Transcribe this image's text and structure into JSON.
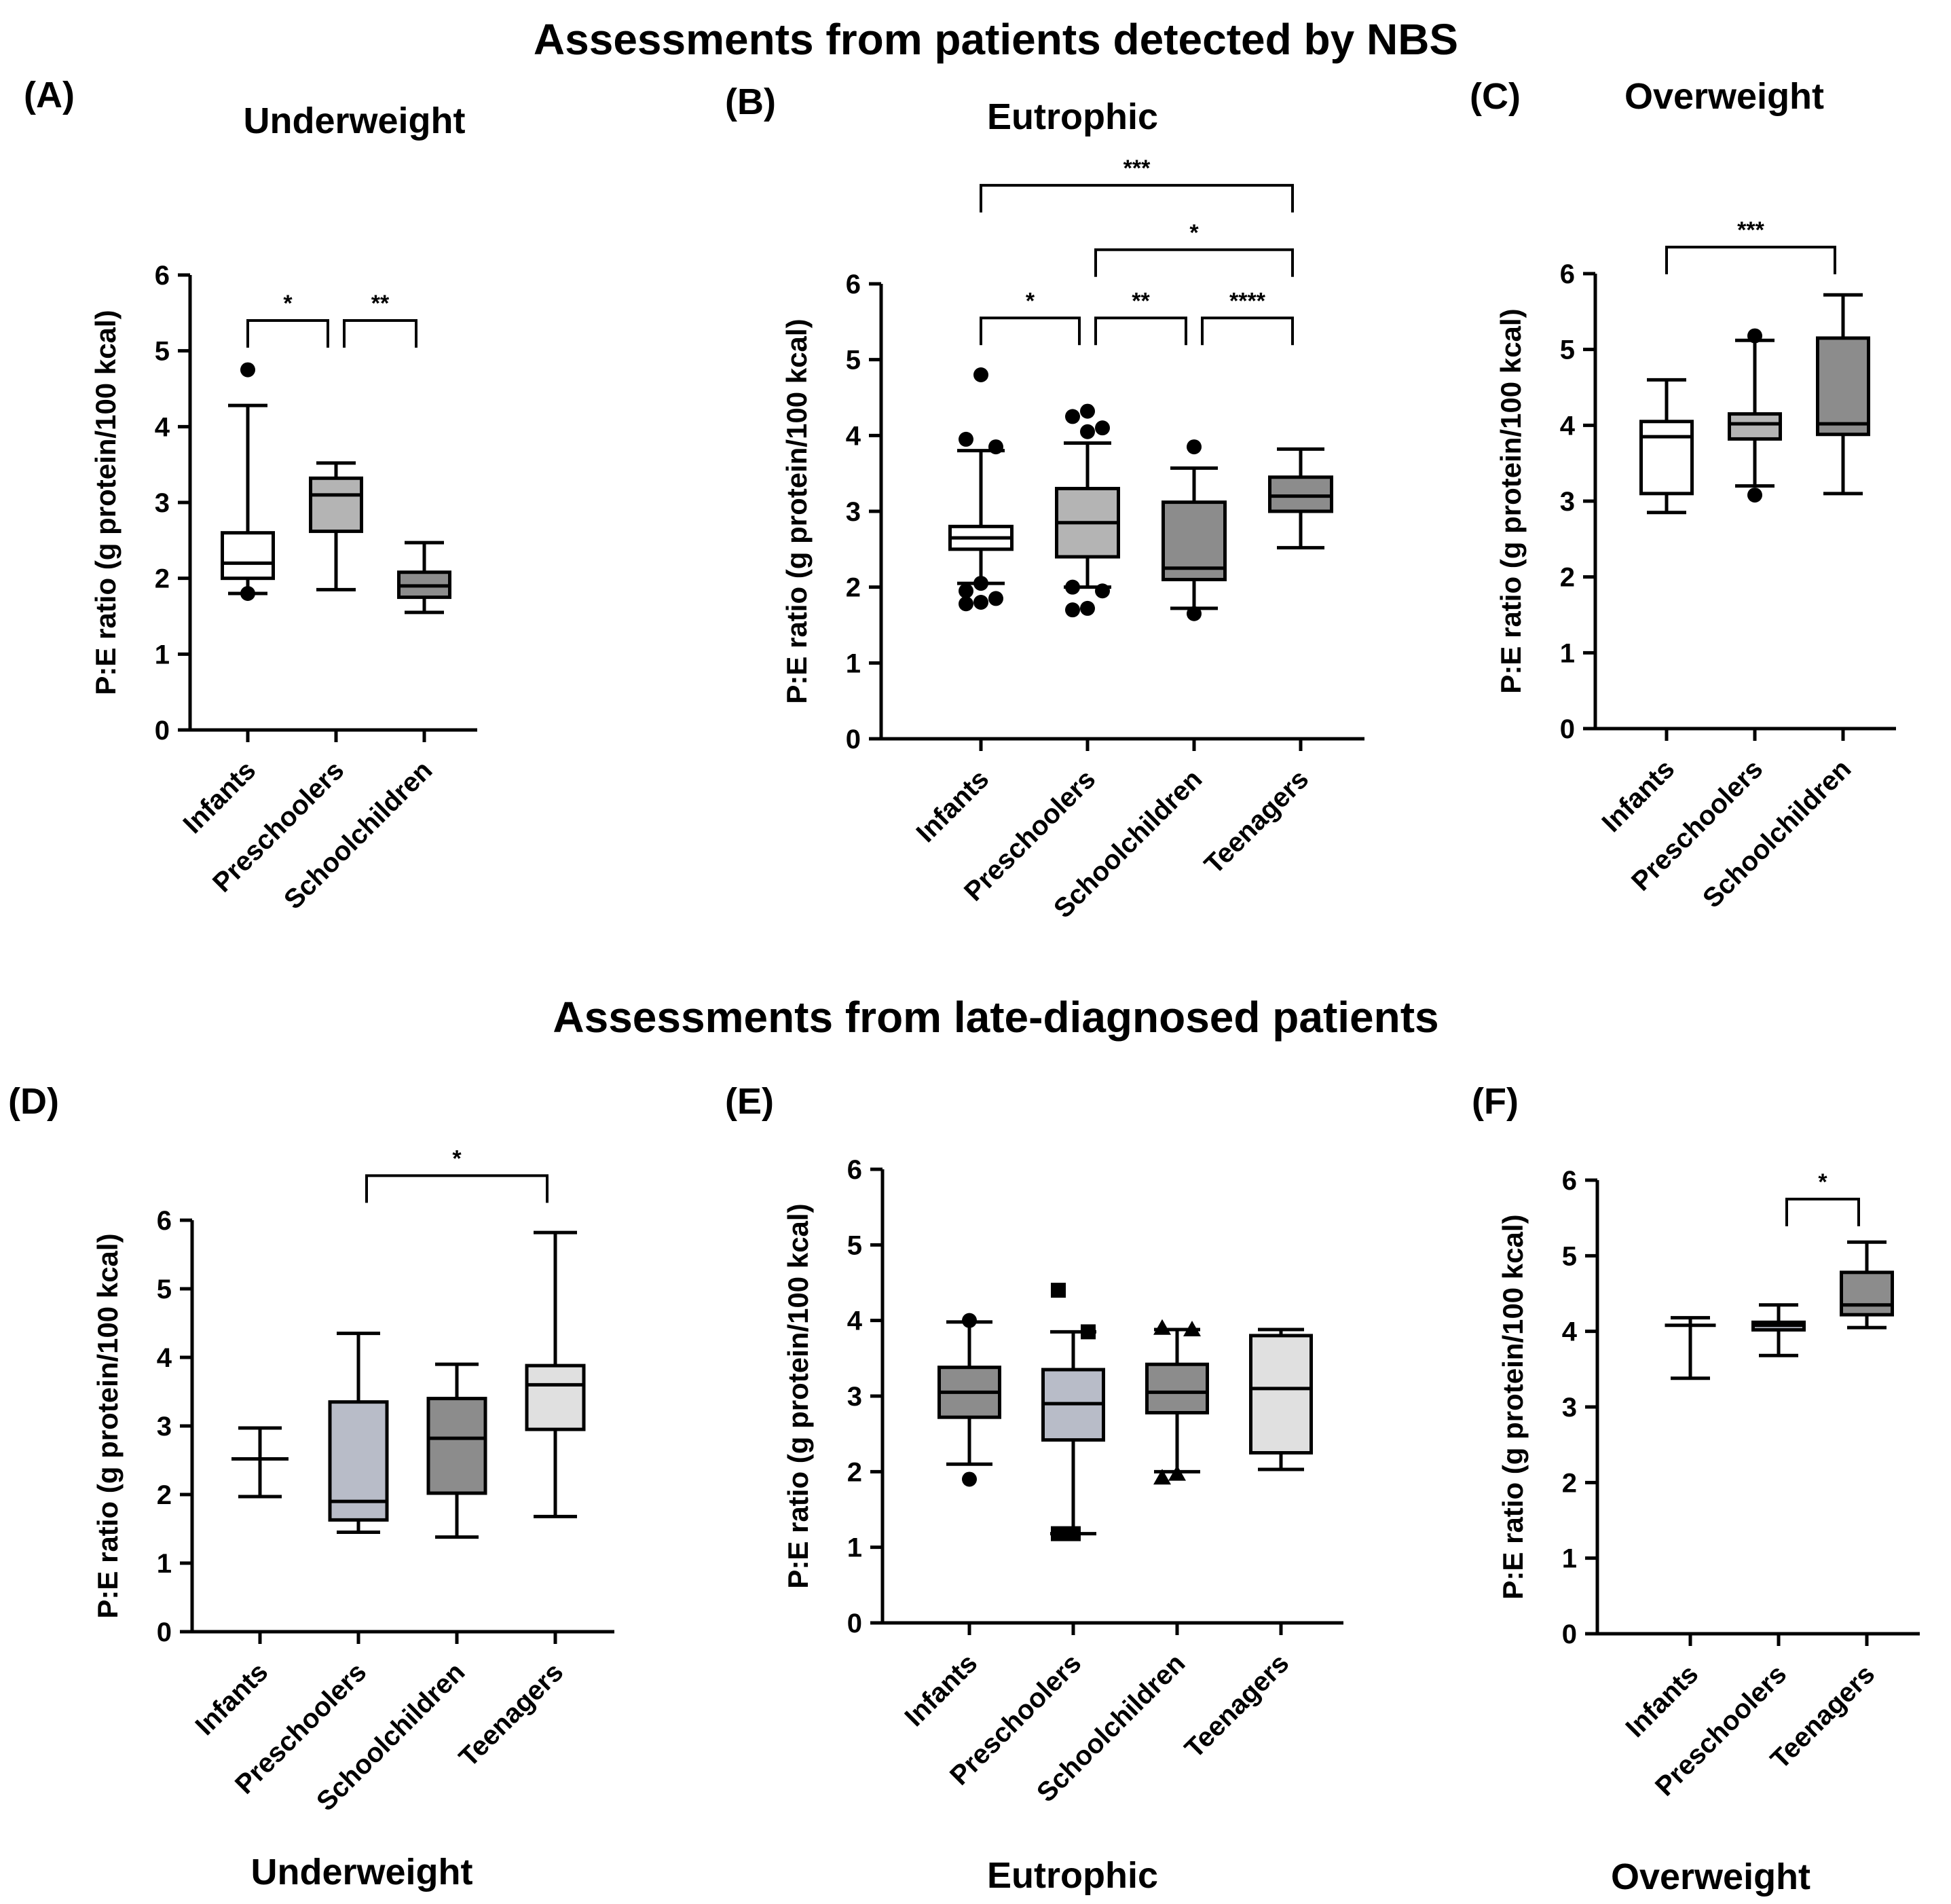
{
  "figure": {
    "title_top": "Assessments from patients detected by NBS",
    "title_bottom": "Assessments from late-diagnosed patients",
    "colors": {
      "white": "#ffffff",
      "light": "#e0e0e0",
      "mid": "#b4b4b4",
      "midblue": "#b8bcc8",
      "dark": "#8c8c8c",
      "line": "#000000"
    }
  },
  "chart_data": [
    {
      "panel": "(A)",
      "title": "Underweight",
      "xlabel": "",
      "type": "box",
      "ylabel": "P:E ratio (g protein/100 kcal)",
      "ylim": [
        0,
        6
      ],
      "yticks": [
        0,
        1,
        2,
        3,
        4,
        5,
        6
      ],
      "categories": [
        "Infants",
        "Preschoolers",
        "Schoolchildren"
      ],
      "boxes": [
        {
          "whisker_low": 1.8,
          "q1": 2.0,
          "median": 2.2,
          "q3": 2.6,
          "whisker_high": 4.28,
          "outliers": [
            1.8,
            4.75
          ],
          "fill": "white"
        },
        {
          "whisker_low": 1.85,
          "q1": 2.62,
          "median": 3.1,
          "q3": 3.32,
          "whisker_high": 3.52,
          "outliers": [],
          "fill": "mid"
        },
        {
          "whisker_low": 1.55,
          "q1": 1.75,
          "median": 1.9,
          "q3": 2.08,
          "whisker_high": 2.47,
          "outliers": [],
          "fill": "dark"
        }
      ],
      "brackets": [
        {
          "from": 0,
          "to": 1,
          "y": 5.4,
          "label": "*"
        },
        {
          "from": 1,
          "to": 2,
          "y": 5.4,
          "label": "**"
        }
      ]
    },
    {
      "panel": "(B)",
      "title": "Eutrophic",
      "xlabel": "",
      "type": "box",
      "ylabel": "P:E ratio (g protein/100 kcal)",
      "ylim": [
        0,
        6
      ],
      "yticks": [
        0,
        1,
        2,
        3,
        4,
        5,
        6
      ],
      "categories": [
        "Infants",
        "Preschoolers",
        "Schoolchildren",
        "Teenagers"
      ],
      "boxes": [
        {
          "whisker_low": 2.05,
          "q1": 2.5,
          "median": 2.65,
          "q3": 2.8,
          "whisker_high": 3.8,
          "outliers": [
            1.78,
            1.8,
            1.85,
            1.95,
            2.05,
            3.85,
            3.95,
            4.8
          ],
          "fill": "white"
        },
        {
          "whisker_low": 2.0,
          "q1": 2.4,
          "median": 2.85,
          "q3": 3.3,
          "whisker_high": 3.9,
          "outliers": [
            1.7,
            1.72,
            1.95,
            2.0,
            4.05,
            4.1,
            4.25,
            4.32
          ],
          "fill": "mid"
        },
        {
          "whisker_low": 1.72,
          "q1": 2.1,
          "median": 2.25,
          "q3": 3.12,
          "whisker_high": 3.57,
          "outliers": [
            1.65,
            3.85
          ],
          "fill": "dark"
        },
        {
          "whisker_low": 2.52,
          "q1": 3.0,
          "median": 3.2,
          "q3": 3.45,
          "whisker_high": 3.82,
          "outliers": [],
          "fill": "dark"
        }
      ],
      "brackets": [
        {
          "from": 0,
          "to": 1,
          "y": 5.55,
          "label": "*"
        },
        {
          "from": 1,
          "to": 2,
          "y": 5.55,
          "label": "**"
        },
        {
          "from": 2,
          "to": 3,
          "y": 5.55,
          "label": "****"
        },
        {
          "from": 1,
          "to": 3,
          "y": 6.45,
          "label": "*"
        },
        {
          "from": 0,
          "to": 3,
          "y": 7.3,
          "label": "***"
        }
      ]
    },
    {
      "panel": "(C)",
      "title": "Overweight",
      "xlabel": "",
      "type": "box",
      "ylabel": "P:E ratio (g protein/100 kcal)",
      "ylim": [
        0,
        6
      ],
      "yticks": [
        0,
        1,
        2,
        3,
        4,
        5,
        6
      ],
      "categories": [
        "Infants",
        "Preschoolers",
        "Schoolchildren"
      ],
      "boxes": [
        {
          "whisker_low": 2.85,
          "q1": 3.1,
          "median": 3.85,
          "q3": 4.05,
          "whisker_high": 4.6,
          "outliers": [],
          "fill": "white"
        },
        {
          "whisker_low": 3.2,
          "q1": 3.82,
          "median": 4.02,
          "q3": 4.15,
          "whisker_high": 5.12,
          "outliers": [
            3.08,
            5.18
          ],
          "fill": "mid"
        },
        {
          "whisker_low": 3.1,
          "q1": 3.88,
          "median": 4.02,
          "q3": 5.15,
          "whisker_high": 5.72,
          "outliers": [],
          "fill": "dark"
        }
      ],
      "brackets": [
        {
          "from": 0,
          "to": 2,
          "y": 6.35,
          "label": "***"
        }
      ]
    },
    {
      "panel": "(D)",
      "title": "",
      "xlabel": "Underweight",
      "type": "box",
      "ylabel": "P:E ratio (g protein/100 kcal)",
      "ylim": [
        0,
        6
      ],
      "yticks": [
        0,
        1,
        2,
        3,
        4,
        5,
        6
      ],
      "categories": [
        "Infants",
        "Preschoolers",
        "Schoolchildren",
        "Teenagers"
      ],
      "boxes": [
        {
          "whisker_low": 1.97,
          "q1": 2.52,
          "median": 2.52,
          "q3": 2.52,
          "whisker_high": 2.97,
          "outliers": [],
          "fill": "white"
        },
        {
          "whisker_low": 1.45,
          "q1": 1.63,
          "median": 1.9,
          "q3": 3.35,
          "whisker_high": 4.35,
          "outliers": [],
          "fill": "midblue"
        },
        {
          "whisker_low": 1.38,
          "q1": 2.02,
          "median": 2.82,
          "q3": 3.4,
          "whisker_high": 3.9,
          "outliers": [],
          "fill": "dark"
        },
        {
          "whisker_low": 1.68,
          "q1": 2.95,
          "median": 3.6,
          "q3": 3.88,
          "whisker_high": 5.82,
          "outliers": [],
          "fill": "light"
        }
      ],
      "brackets": [
        {
          "from": 1,
          "to": 3,
          "y": 6.65,
          "label": "*"
        }
      ]
    },
    {
      "panel": "(E)",
      "title": "",
      "xlabel": "Eutrophic",
      "type": "box",
      "ylabel": "P:E ratio (g protein/100 kcal)",
      "ylim": [
        0,
        6
      ],
      "yticks": [
        0,
        1,
        2,
        3,
        4,
        5,
        6
      ],
      "categories": [
        "Infants",
        "Preschoolers",
        "Schoolchildren",
        "Teenagers"
      ],
      "boxes": [
        {
          "whisker_low": 2.1,
          "q1": 2.72,
          "median": 3.05,
          "q3": 3.38,
          "whisker_high": 3.98,
          "outliers": [
            1.9,
            4.0
          ],
          "fill": "dark",
          "marker": "circle"
        },
        {
          "whisker_low": 1.18,
          "q1": 2.42,
          "median": 2.9,
          "q3": 3.35,
          "whisker_high": 3.85,
          "outliers": [
            1.18,
            1.18,
            3.85,
            4.4
          ],
          "fill": "midblue",
          "marker": "square"
        },
        {
          "whisker_low": 2.0,
          "q1": 2.78,
          "median": 3.05,
          "q3": 3.42,
          "whisker_high": 3.88,
          "outliers": [
            1.92,
            1.97,
            3.88,
            3.9
          ],
          "fill": "dark",
          "marker": "triangle"
        },
        {
          "whisker_low": 2.03,
          "q1": 2.25,
          "median": 3.1,
          "q3": 3.8,
          "whisker_high": 3.88,
          "outliers": [],
          "fill": "light"
        }
      ],
      "brackets": []
    },
    {
      "panel": "(F)",
      "title": "",
      "xlabel": "Overweight",
      "type": "box",
      "ylabel": "P:E ratio (g protein/100 kcal)",
      "ylim": [
        0,
        6
      ],
      "yticks": [
        0,
        1,
        2,
        3,
        4,
        5,
        6
      ],
      "categories": [
        "Infants",
        "Preschoolers",
        "Teenagers"
      ],
      "boxes": [
        {
          "whisker_low": 3.38,
          "q1": 4.08,
          "median": 4.08,
          "q3": 4.08,
          "whisker_high": 4.18,
          "outliers": [],
          "fill": "white"
        },
        {
          "whisker_low": 3.68,
          "q1": 4.02,
          "median": 4.08,
          "q3": 4.12,
          "whisker_high": 4.35,
          "outliers": [],
          "fill": "midblue"
        },
        {
          "whisker_low": 4.05,
          "q1": 4.22,
          "median": 4.35,
          "q3": 4.78,
          "whisker_high": 5.18,
          "outliers": [],
          "fill": "dark"
        }
      ],
      "brackets": [
        {
          "from": 1,
          "to": 2,
          "y": 5.75,
          "label": "*"
        }
      ]
    }
  ]
}
